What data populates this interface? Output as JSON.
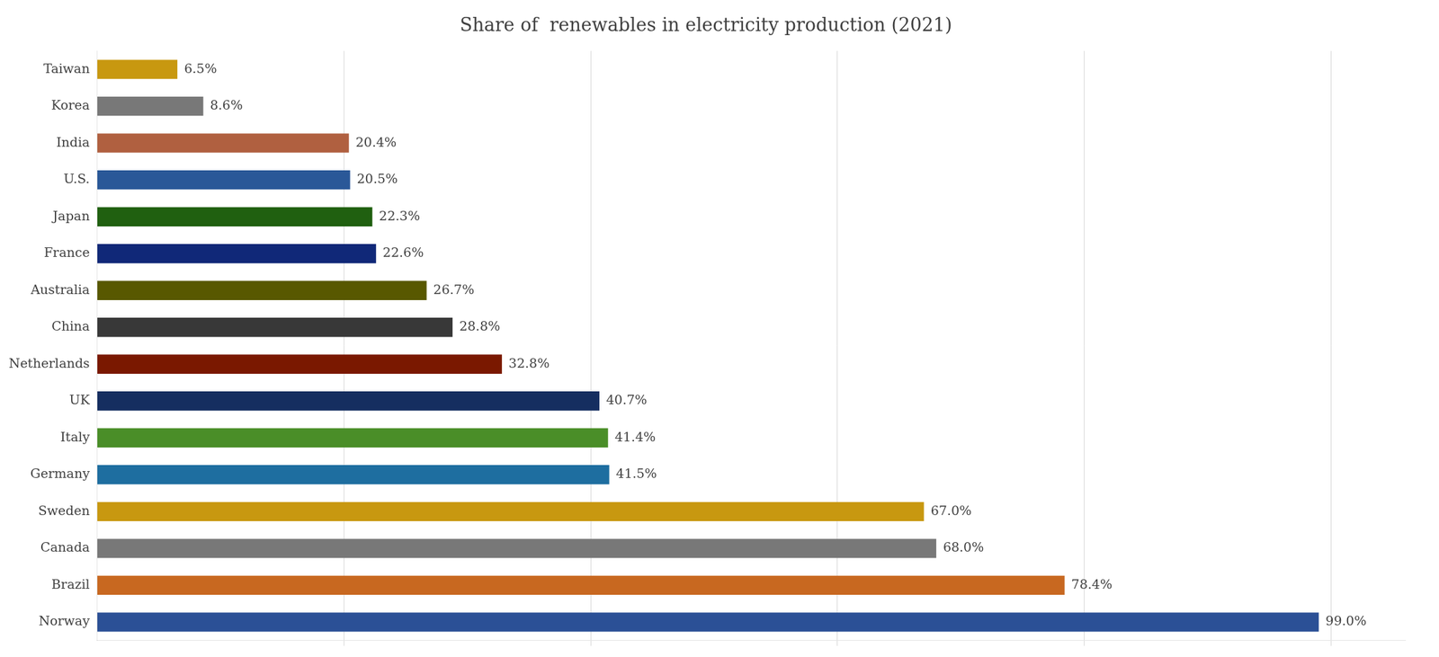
{
  "chart_data": {
    "type": "bar",
    "orientation": "horizontal",
    "title": "Share of  renewables in electricity production (2021)",
    "categories": [
      "Norway",
      "Brazil",
      "Canada",
      "Sweden",
      "Germany",
      "Italy",
      "UK",
      "Netherlands",
      "China",
      "Australia",
      "France",
      "Japan",
      "U.S.",
      "India",
      "Korea",
      "Taiwan"
    ],
    "values": [
      99.0,
      78.4,
      68.0,
      67.0,
      41.5,
      41.4,
      40.7,
      32.8,
      28.8,
      26.7,
      22.6,
      22.3,
      20.5,
      20.4,
      8.6,
      6.5
    ],
    "value_labels": [
      "99.0%",
      "78.4%",
      "68.0%",
      "67.0%",
      "41.5%",
      "41.4%",
      "40.7%",
      "32.8%",
      "28.8%",
      "26.7%",
      "22.6%",
      "22.3%",
      "20.5%",
      "20.4%",
      "8.6%",
      "6.5%"
    ],
    "data_labels": true,
    "colors": [
      "#2b5096",
      "#c86820",
      "#787878",
      "#c89810",
      "#1e6ea0",
      "#4a8e28",
      "#152e60",
      "#7a1800",
      "#383838",
      "#585800",
      "#102878",
      "#206010",
      "#2a5898",
      "#b06040",
      "#787878",
      "#c89810"
    ],
    "xlim": [
      0,
      106
    ],
    "xticks": [
      20,
      40,
      60,
      80,
      100
    ],
    "grid": true,
    "tick_labels": "y"
  }
}
